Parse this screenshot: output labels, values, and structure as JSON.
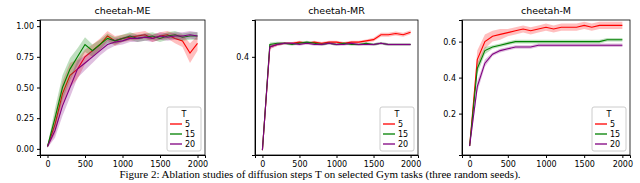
{
  "chart_data": [
    {
      "type": "line",
      "title": "cheetah-ME",
      "x": [
        0,
        100,
        200,
        300,
        400,
        500,
        600,
        700,
        800,
        900,
        1000,
        1100,
        1200,
        1300,
        1400,
        1500,
        1600,
        1700,
        1800,
        1900,
        2000
      ],
      "xlim": [
        -100,
        2100
      ],
      "xticks": [
        0,
        500,
        1000,
        1500,
        2000
      ],
      "ylim": [
        -0.05,
        1.05
      ],
      "yticks": [
        {
          "value": 0,
          "label": "0.00"
        },
        {
          "value": 0.25,
          "label": "0.25"
        },
        {
          "value": 0.5,
          "label": "0.50"
        },
        {
          "value": 0.75,
          "label": "0.75"
        },
        {
          "value": 1,
          "label": "1.00"
        }
      ],
      "legend": "lower right",
      "legend_title": "T",
      "series": [
        {
          "name": "5",
          "color": "#ff0000",
          "values": [
            0.02,
            0.2,
            0.45,
            0.6,
            0.65,
            0.75,
            0.8,
            0.85,
            0.92,
            0.88,
            0.9,
            0.91,
            0.92,
            0.93,
            0.9,
            0.92,
            0.93,
            0.9,
            0.88,
            0.78,
            0.86
          ],
          "errors": [
            0.01,
            0.08,
            0.1,
            0.1,
            0.08,
            0.06,
            0.05,
            0.05,
            0.04,
            0.04,
            0.03,
            0.03,
            0.03,
            0.03,
            0.03,
            0.03,
            0.03,
            0.04,
            0.05,
            0.08,
            0.06
          ]
        },
        {
          "name": "15",
          "color": "#008000",
          "values": [
            0.02,
            0.25,
            0.5,
            0.65,
            0.75,
            0.85,
            0.8,
            0.85,
            0.9,
            0.88,
            0.9,
            0.92,
            0.9,
            0.91,
            0.92,
            0.9,
            0.92,
            0.93,
            0.91,
            0.92,
            0.92
          ],
          "errors": [
            0.01,
            0.08,
            0.1,
            0.09,
            0.07,
            0.06,
            0.05,
            0.04,
            0.04,
            0.03,
            0.03,
            0.03,
            0.03,
            0.03,
            0.03,
            0.03,
            0.03,
            0.03,
            0.03,
            0.03,
            0.03
          ]
        },
        {
          "name": "20",
          "color": "#800080",
          "values": [
            0.02,
            0.15,
            0.35,
            0.5,
            0.65,
            0.7,
            0.75,
            0.8,
            0.85,
            0.87,
            0.88,
            0.9,
            0.9,
            0.91,
            0.9,
            0.92,
            0.91,
            0.92,
            0.92,
            0.93,
            0.92
          ],
          "errors": [
            0.01,
            0.06,
            0.08,
            0.08,
            0.07,
            0.06,
            0.05,
            0.04,
            0.04,
            0.03,
            0.03,
            0.03,
            0.03,
            0.03,
            0.03,
            0.03,
            0.03,
            0.03,
            0.03,
            0.03,
            0.03
          ]
        }
      ]
    },
    {
      "type": "line",
      "title": "cheetah-MR",
      "x": [
        0,
        100,
        200,
        300,
        400,
        500,
        600,
        700,
        800,
        900,
        1000,
        1100,
        1200,
        1300,
        1400,
        1500,
        1600,
        1700,
        1800,
        1900,
        2000
      ],
      "xlim": [
        -100,
        2100
      ],
      "xticks": [
        0,
        500,
        1000,
        1500,
        2000
      ],
      "ylim": [
        0,
        0.55
      ],
      "yticks": [
        0.4
      ],
      "legend": "lower right",
      "legend_title": "T",
      "series": [
        {
          "name": "5",
          "color": "#ff0000",
          "values": [
            0.02,
            0.44,
            0.45,
            0.455,
            0.455,
            0.46,
            0.455,
            0.46,
            0.455,
            0.46,
            0.46,
            0.455,
            0.46,
            0.46,
            0.465,
            0.47,
            0.49,
            0.49,
            0.495,
            0.49,
            0.5
          ],
          "errors": [
            0.005,
            0.008,
            0.006,
            0.005,
            0.005,
            0.005,
            0.005,
            0.005,
            0.005,
            0.005,
            0.005,
            0.005,
            0.005,
            0.005,
            0.006,
            0.008,
            0.008,
            0.008,
            0.008,
            0.008,
            0.008
          ]
        },
        {
          "name": "15",
          "color": "#008000",
          "values": [
            0.02,
            0.45,
            0.455,
            0.455,
            0.45,
            0.455,
            0.46,
            0.455,
            0.45,
            0.455,
            0.45,
            0.455,
            0.45,
            0.45,
            0.455,
            0.45,
            0.455,
            0.45,
            0.45,
            0.45,
            0.45
          ],
          "errors": [
            0.005,
            0.008,
            0.006,
            0.005,
            0.005,
            0.005,
            0.005,
            0.005,
            0.005,
            0.005,
            0.005,
            0.005,
            0.005,
            0.005,
            0.005,
            0.005,
            0.005,
            0.005,
            0.005,
            0.005,
            0.005
          ]
        },
        {
          "name": "20",
          "color": "#800080",
          "values": [
            0.02,
            0.44,
            0.45,
            0.455,
            0.455,
            0.45,
            0.455,
            0.45,
            0.45,
            0.455,
            0.45,
            0.45,
            0.455,
            0.45,
            0.45,
            0.45,
            0.455,
            0.45,
            0.45,
            0.45,
            0.45
          ],
          "errors": [
            0.005,
            0.008,
            0.006,
            0.005,
            0.005,
            0.005,
            0.005,
            0.005,
            0.005,
            0.005,
            0.005,
            0.005,
            0.005,
            0.005,
            0.005,
            0.005,
            0.005,
            0.005,
            0.005,
            0.005,
            0.005
          ]
        }
      ]
    },
    {
      "type": "line",
      "title": "cheetah-M",
      "x": [
        0,
        100,
        200,
        300,
        400,
        500,
        600,
        700,
        800,
        900,
        1000,
        1100,
        1200,
        1300,
        1400,
        1500,
        1600,
        1700,
        1800,
        1900,
        2000
      ],
      "xlim": [
        -100,
        2100
      ],
      "xticks": [
        0,
        500,
        1000,
        1500,
        2000
      ],
      "ylim": [
        -0.03,
        0.72
      ],
      "yticks": [
        0.2,
        0.4,
        0.6
      ],
      "legend": "lower right",
      "legend_title": "T",
      "series": [
        {
          "name": "5",
          "color": "#ff0000",
          "values": [
            0.02,
            0.5,
            0.6,
            0.63,
            0.64,
            0.65,
            0.66,
            0.67,
            0.66,
            0.67,
            0.68,
            0.67,
            0.68,
            0.68,
            0.68,
            0.69,
            0.68,
            0.69,
            0.69,
            0.69,
            0.69
          ],
          "errors": [
            0.01,
            0.05,
            0.04,
            0.03,
            0.03,
            0.02,
            0.02,
            0.02,
            0.02,
            0.02,
            0.02,
            0.02,
            0.02,
            0.02,
            0.02,
            0.02,
            0.02,
            0.02,
            0.02,
            0.02,
            0.02
          ]
        },
        {
          "name": "15",
          "color": "#008000",
          "values": [
            0.02,
            0.45,
            0.55,
            0.57,
            0.58,
            0.59,
            0.6,
            0.6,
            0.6,
            0.6,
            0.6,
            0.6,
            0.6,
            0.6,
            0.6,
            0.6,
            0.6,
            0.6,
            0.61,
            0.61,
            0.61
          ],
          "errors": [
            0.01,
            0.03,
            0.02,
            0.01,
            0.01,
            0.01,
            0.01,
            0.01,
            0.01,
            0.01,
            0.01,
            0.01,
            0.01,
            0.01,
            0.01,
            0.01,
            0.01,
            0.01,
            0.01,
            0.01,
            0.01
          ]
        },
        {
          "name": "20",
          "color": "#800080",
          "values": [
            0.02,
            0.35,
            0.48,
            0.53,
            0.55,
            0.56,
            0.57,
            0.57,
            0.57,
            0.58,
            0.58,
            0.58,
            0.58,
            0.58,
            0.58,
            0.58,
            0.58,
            0.58,
            0.58,
            0.58,
            0.58
          ],
          "errors": [
            0.01,
            0.03,
            0.02,
            0.01,
            0.01,
            0.01,
            0.01,
            0.01,
            0.01,
            0.01,
            0.01,
            0.01,
            0.01,
            0.01,
            0.01,
            0.01,
            0.01,
            0.01,
            0.01,
            0.01,
            0.01
          ]
        }
      ]
    }
  ],
  "caption": "Figure 2: Ablation studies of diffusion steps T on selected Gym tasks (three random seeds)."
}
